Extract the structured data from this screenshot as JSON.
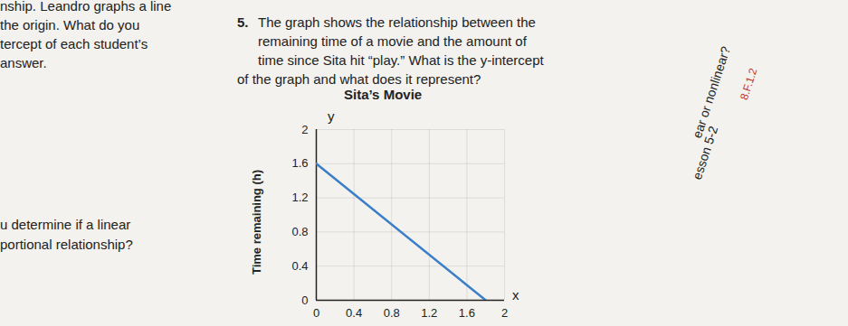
{
  "question": {
    "number": "5.",
    "lines": [
      "The graph shows the relationship between the",
      "remaining time of a movie and the amount of",
      "time since Sita hit “play.” What is the y-intercept",
      "of the graph and what does it represent?"
    ]
  },
  "left_margin_text": [
    "nship. Leandro graphs a line",
    "the origin. What do you",
    "tercept of each student’s",
    "answer.",
    "u determine if a linear",
    "portional relationship?"
  ],
  "right_margin_text": [
    "ear or nonlinear?",
    "esson 5-2",
    "8.F.1.2"
  ],
  "chart_data": {
    "type": "line",
    "title": "Sita’s Movie",
    "x_label": "x",
    "y_label": "Time remaining (h)",
    "y_axis_letter": "y",
    "series": [
      {
        "name": "Time remaining",
        "color": "#3b7fc9",
        "x": [
          0,
          1.8
        ],
        "values": [
          1.6,
          0
        ]
      }
    ],
    "xlim": [
      0,
      2
    ],
    "ylim": [
      0,
      2
    ],
    "xticks": [
      0,
      0.4,
      0.8,
      1.2,
      1.6,
      2
    ],
    "yticks": [
      0,
      0.4,
      0.8,
      1.2,
      1.6,
      2
    ],
    "grid": true
  }
}
